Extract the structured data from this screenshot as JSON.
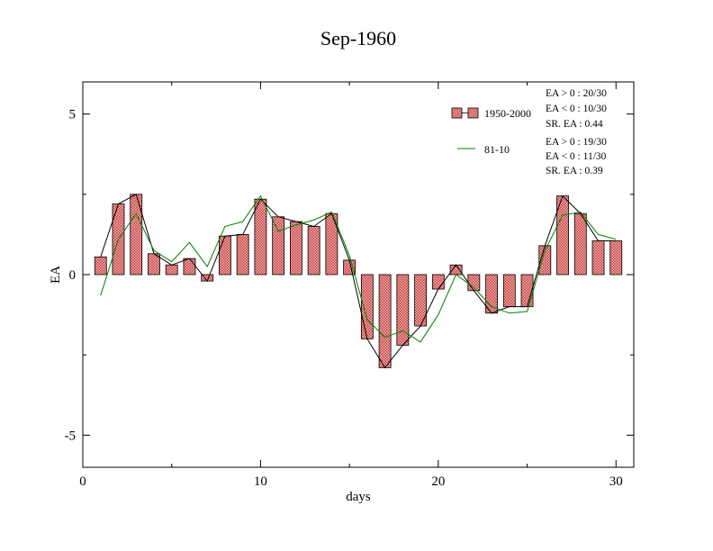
{
  "chart_data": {
    "type": "bar",
    "title": "Sep-1960",
    "xlabel": "days",
    "ylabel": "EA",
    "xlim": [
      0,
      31
    ],
    "ylim": [
      -6,
      6
    ],
    "x_ticks": [
      0,
      10,
      20,
      30
    ],
    "y_ticks": [
      -5,
      0,
      5
    ],
    "x_tick_labels": [
      "0",
      "10",
      "20",
      "30"
    ],
    "y_tick_labels": [
      "-5",
      "0",
      "5"
    ],
    "grid": false,
    "legend_position": "top-right",
    "x": [
      1,
      2,
      3,
      4,
      5,
      6,
      7,
      8,
      9,
      10,
      11,
      12,
      13,
      14,
      15,
      16,
      17,
      18,
      19,
      20,
      21,
      22,
      23,
      24,
      25,
      26,
      27,
      28,
      29,
      30
    ],
    "series": [
      {
        "name": "1950-2000",
        "type": "bar",
        "color": "#e88080",
        "values": [
          0.55,
          2.2,
          2.5,
          0.65,
          0.3,
          0.5,
          -0.2,
          1.2,
          1.25,
          2.35,
          1.8,
          1.65,
          1.5,
          1.9,
          0.45,
          -2.0,
          -2.9,
          -2.2,
          -1.6,
          -0.45,
          0.3,
          -0.5,
          -1.2,
          -1.0,
          -1.0,
          0.9,
          2.45,
          1.9,
          1.05,
          1.05
        ]
      },
      {
        "name": "81-10",
        "type": "line",
        "color": "#008000",
        "values": [
          -0.65,
          1.1,
          1.9,
          0.75,
          0.4,
          1.0,
          0.25,
          1.5,
          1.65,
          2.45,
          1.35,
          1.55,
          1.7,
          1.95,
          0.6,
          -1.4,
          -1.95,
          -1.75,
          -2.1,
          -1.25,
          0.0,
          -0.4,
          -1.0,
          -1.2,
          -1.15,
          0.75,
          1.85,
          1.95,
          1.25,
          1.1
        ]
      }
    ],
    "stats": [
      {
        "pos": "EA > 0 : 20/30",
        "neg": "EA < 0 : 10/30",
        "sr": "SR. EA :  0.44"
      },
      {
        "pos": "EA > 0 : 19/30",
        "neg": "EA < 0 : 11/30",
        "sr": "SR. EA :  0.39"
      }
    ]
  }
}
